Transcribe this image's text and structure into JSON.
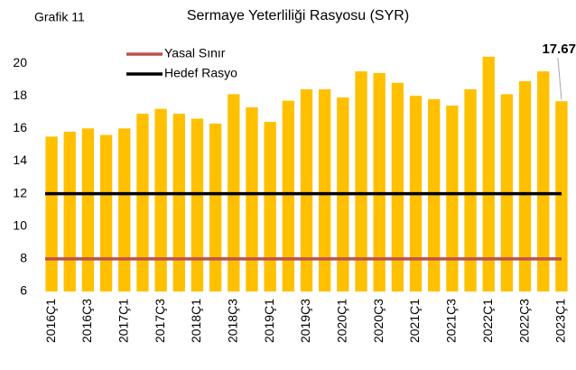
{
  "chart_data": {
    "type": "bar",
    "label": "Grafik 11",
    "title": "Sermaye Yeterliliği Rasyosu (SYR)",
    "categories": [
      "2016Ç1",
      null,
      "2016Ç3",
      null,
      "2017Ç1",
      null,
      "2017Ç3",
      null,
      "2018Ç1",
      null,
      "2018Ç3",
      null,
      "2019Ç1",
      null,
      "2019Ç3",
      null,
      "2020Ç1",
      null,
      "2020Ç3",
      null,
      "2021Ç1",
      null,
      "2021Ç3",
      null,
      "2022Ç1",
      null,
      "2022Ç3",
      null,
      "2023Ç1"
    ],
    "series": [
      {
        "name": "SYR",
        "type": "bar",
        "color": "#ffc000",
        "values": [
          15.5,
          15.8,
          16.0,
          15.6,
          16.0,
          16.9,
          17.2,
          16.9,
          16.6,
          16.3,
          18.1,
          17.3,
          16.4,
          17.7,
          18.4,
          18.4,
          17.9,
          19.5,
          19.4,
          18.8,
          18.0,
          17.8,
          17.4,
          18.4,
          20.4,
          18.1,
          18.9,
          19.5,
          17.67
        ]
      },
      {
        "name": "Yasal Sınır",
        "type": "line",
        "color": "#c0504d",
        "values": [
          8,
          8,
          8,
          8,
          8,
          8,
          8,
          8,
          8,
          8,
          8,
          8,
          8,
          8,
          8,
          8,
          8,
          8,
          8,
          8,
          8,
          8,
          8,
          8,
          8,
          8,
          8,
          8,
          8
        ]
      },
      {
        "name": "Hedef Rasyo",
        "type": "line",
        "color": "#000000",
        "values": [
          12,
          12,
          12,
          12,
          12,
          12,
          12,
          12,
          12,
          12,
          12,
          12,
          12,
          12,
          12,
          12,
          12,
          12,
          12,
          12,
          12,
          12,
          12,
          12,
          12,
          12,
          12,
          12,
          12
        ]
      }
    ],
    "ylim": [
      6,
      21
    ],
    "yticks": [
      6,
      8,
      10,
      12,
      14,
      16,
      18,
      20
    ],
    "grid": false
  }
}
